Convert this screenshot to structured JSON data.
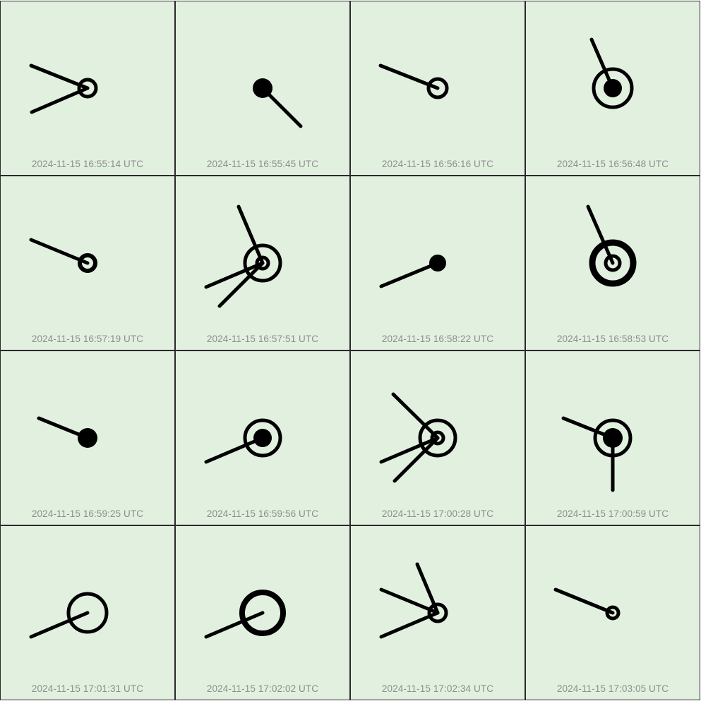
{
  "timestamps": [
    "2024-11-15 16:55:14 UTC",
    "2024-11-15 16:55:45 UTC",
    "2024-11-15 16:56:16 UTC",
    "2024-11-15 16:56:48 UTC",
    "2024-11-15 16:57:19 UTC",
    "2024-11-15 16:57:51 UTC",
    "2024-11-15 16:58:22 UTC",
    "2024-11-15 16:58:53 UTC",
    "2024-11-15 16:59:25 UTC",
    "2024-11-15 16:59:56 UTC",
    "2024-11-15 17:00:28 UTC",
    "2024-11-15 17:00:59 UTC",
    "2024-11-15 17:01:31 UTC",
    "2024-11-15 17:02:02 UTC",
    "2024-11-15 17:02:34 UTC",
    "2024-11-15 17:03:05 UTC"
  ],
  "colors": {
    "cell_background": "#e2f0e0",
    "border": "#2a2a2a",
    "glyph": "#000000",
    "timestamp_text": "#8a8f8a"
  }
}
